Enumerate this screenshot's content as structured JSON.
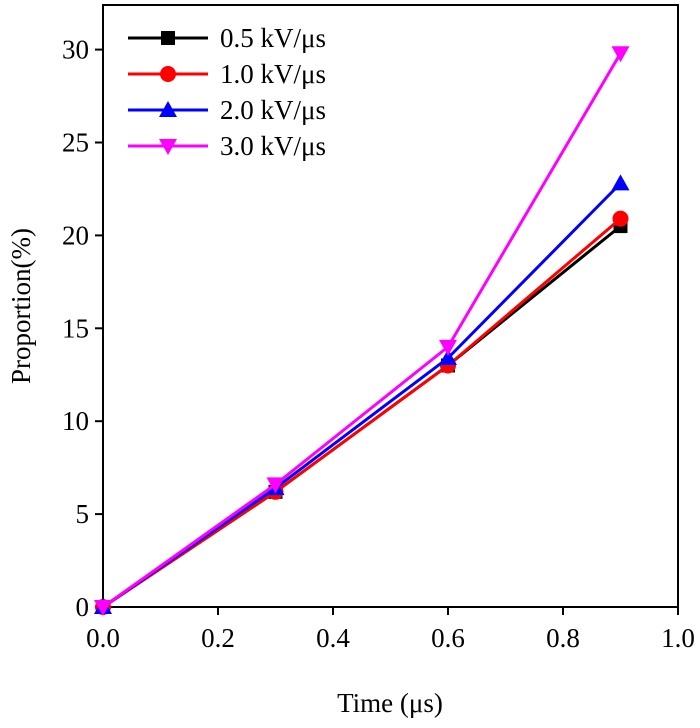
{
  "chart_data": {
    "type": "line",
    "x_label": "Time (μs)",
    "y_label": "Proportion(%)",
    "x": [
      0,
      0.3,
      0.6,
      0.9
    ],
    "series": [
      {
        "name": "0.5 kV/μs",
        "color": "#000000",
        "marker": "square",
        "values": [
          0,
          6.2,
          13.0,
          20.5
        ]
      },
      {
        "name": "1.0 kV/μs",
        "color": "#ff0000",
        "marker": "circle",
        "values": [
          0,
          6.2,
          13.0,
          20.9
        ]
      },
      {
        "name": "2.0 kV/μs",
        "color": "#0000ff",
        "marker": "triangle-up",
        "values": [
          0,
          6.4,
          13.4,
          22.8
        ]
      },
      {
        "name": "3.0 kV/μs",
        "color": "#ff00ff",
        "marker": "triangle-down",
        "values": [
          0,
          6.6,
          14.0,
          29.8
        ]
      }
    ],
    "xlim": [
      0,
      1
    ],
    "xticks": [
      {
        "value": 0,
        "label": "0.0"
      },
      0.2,
      0.4,
      0.6,
      0.8,
      {
        "value": 1,
        "label": "1.0"
      }
    ],
    "ylim": [
      0,
      32.4
    ],
    "yticks": [
      0,
      5,
      10,
      15,
      20,
      25,
      30
    ],
    "legend": "upper-left"
  }
}
